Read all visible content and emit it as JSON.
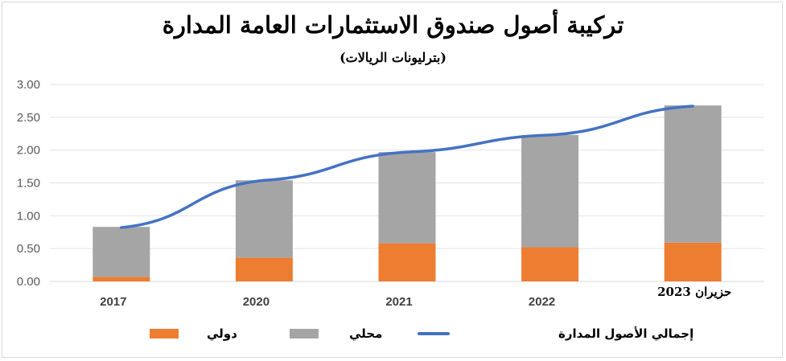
{
  "chart_data": {
    "type": "bar",
    "title": "تركيبة أصول صندوق الاستثمارات العامة المدارة",
    "subtitle": "(بترليونات الريالات)",
    "categories": [
      "2017",
      "2020",
      "2021",
      "2022",
      "حزيران 2023"
    ],
    "ylim": [
      0,
      3
    ],
    "yticks": [
      "0.00",
      "0.50",
      "1.00",
      "1.50",
      "2.00",
      "2.50",
      "3.00"
    ],
    "grid": true,
    "legend_position": "bottom",
    "series": [
      {
        "name": "دولي",
        "type": "stacked-bar",
        "color": "#ed7d31",
        "values": [
          0.07,
          0.36,
          0.58,
          0.52,
          0.59
        ]
      },
      {
        "name": "محلي",
        "type": "stacked-bar",
        "color": "#a5a5a5",
        "values": [
          0.76,
          1.18,
          1.39,
          1.71,
          2.09
        ]
      },
      {
        "name": "إجمالي الأصول المدارة",
        "type": "line",
        "color": "#4472c4",
        "values": [
          0.82,
          1.54,
          1.97,
          2.23,
          2.67
        ]
      }
    ]
  }
}
